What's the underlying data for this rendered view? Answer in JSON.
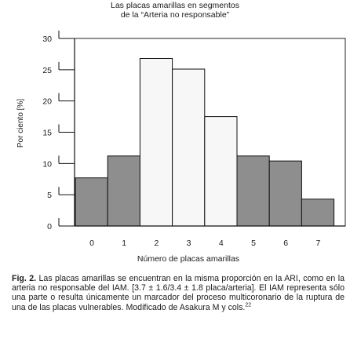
{
  "chart_data": {
    "type": "bar",
    "title": [
      "Las placas amarillas en segmentos",
      "de la “Arteria no responsable”"
    ],
    "xlabel": "Número de placas amarillas",
    "ylabel": "Por ciento [%]",
    "ylim": [
      0,
      30
    ],
    "yticks": [
      0,
      5,
      10,
      15,
      20,
      25,
      30
    ],
    "categories": [
      "0",
      "1",
      "2",
      "3",
      "4",
      "5",
      "6",
      "7"
    ],
    "series": [
      {
        "role": "left-bars",
        "color": "#8e8e8e",
        "values": [
          7.7,
          11.2,
          null,
          null,
          null,
          11.2,
          10.4,
          4.3
        ]
      },
      {
        "role": "right-bars",
        "color": "#f7f7f7",
        "values": [
          null,
          null,
          26.8,
          25.1,
          17.5,
          null,
          null,
          null
        ]
      }
    ],
    "grid": false
  },
  "caption": {
    "label": "Fig. 2.",
    "text": "Las placas amarillas se encuentran en la misma proporción en la ARI, como en la arteria no responsable del IAM. [3.7 ± 1.6/3.4 ± 1.8 placa/arteria]. El IAM representa sólo una parte o resulta únicamente un marcador del proceso multicoronario de la ruptura de una de las placas vulnerables. Modificado de Asakura M y cols.",
    "reference": "22"
  }
}
